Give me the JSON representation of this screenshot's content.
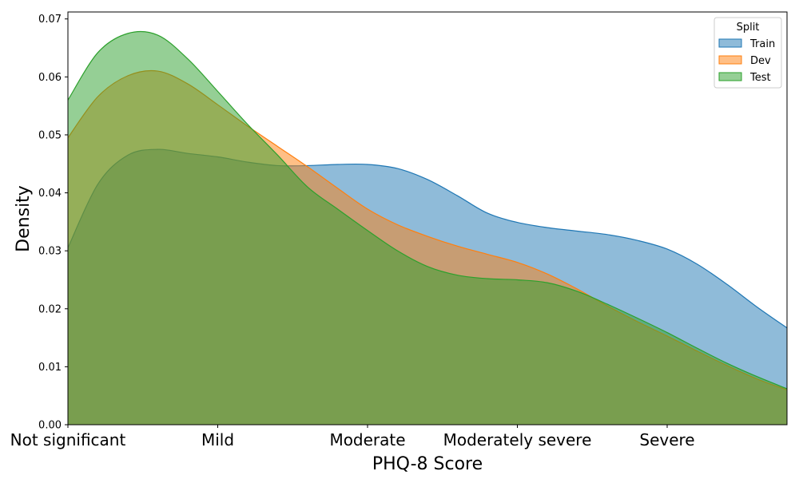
{
  "chart_data": {
    "type": "area",
    "title": "",
    "xlabel": "PHQ-8 Score",
    "ylabel": "Density",
    "xlim": [
      0,
      24
    ],
    "ylim": [
      0,
      0.0712
    ],
    "grid": false,
    "x_tick_positions": [
      0,
      5,
      10,
      15,
      20
    ],
    "x_tick_labels": [
      "Not significant",
      "Mild",
      "Moderate",
      "Moderately severe",
      "Severe"
    ],
    "y_ticks": [
      0.0,
      0.01,
      0.02,
      0.03,
      0.04,
      0.05,
      0.06,
      0.07
    ],
    "y_tick_labels": [
      "0.00",
      "0.01",
      "0.02",
      "0.03",
      "0.04",
      "0.05",
      "0.06",
      "0.07"
    ],
    "legend": {
      "title": "Split",
      "position": "top-right"
    },
    "series": [
      {
        "name": "Train",
        "color": "#1f77b4",
        "x": [
          0,
          1,
          2,
          3,
          4,
          5,
          6,
          7,
          8,
          9,
          10,
          11,
          12,
          13,
          14,
          15,
          16,
          17,
          18,
          19,
          20,
          21,
          22,
          23,
          24
        ],
        "y": [
          0.0305,
          0.0415,
          0.0465,
          0.0475,
          0.0468,
          0.0462,
          0.0453,
          0.0447,
          0.0447,
          0.0449,
          0.0449,
          0.0442,
          0.0423,
          0.0395,
          0.0365,
          0.0349,
          0.034,
          0.0334,
          0.0328,
          0.0318,
          0.0303,
          0.0277,
          0.0242,
          0.0203,
          0.0167
        ]
      },
      {
        "name": "Dev",
        "color": "#ff7f0e",
        "x": [
          0,
          1,
          2,
          3,
          4,
          5,
          6,
          7,
          8,
          9,
          10,
          11,
          12,
          13,
          14,
          15,
          16,
          17,
          18,
          19,
          20,
          21,
          22,
          23,
          24
        ],
        "y": [
          0.0495,
          0.0566,
          0.0602,
          0.061,
          0.0588,
          0.0552,
          0.0515,
          0.048,
          0.0445,
          0.0408,
          0.0372,
          0.0345,
          0.0325,
          0.0308,
          0.0294,
          0.028,
          0.026,
          0.0234,
          0.0205,
          0.0178,
          0.0153,
          0.0127,
          0.0102,
          0.0079,
          0.006
        ]
      },
      {
        "name": "Test",
        "color": "#2ca02c",
        "x": [
          0,
          1,
          2,
          3,
          4,
          5,
          6,
          7,
          8,
          9,
          10,
          11,
          12,
          13,
          14,
          15,
          16,
          17,
          18,
          19,
          20,
          21,
          22,
          23,
          24
        ],
        "y": [
          0.056,
          0.0642,
          0.0675,
          0.0672,
          0.0631,
          0.0575,
          0.0518,
          0.0465,
          0.041,
          0.0372,
          0.0335,
          0.03,
          0.0273,
          0.0258,
          0.0252,
          0.025,
          0.0245,
          0.023,
          0.0208,
          0.0184,
          0.0159,
          0.0132,
          0.0106,
          0.0083,
          0.0062
        ]
      }
    ]
  }
}
